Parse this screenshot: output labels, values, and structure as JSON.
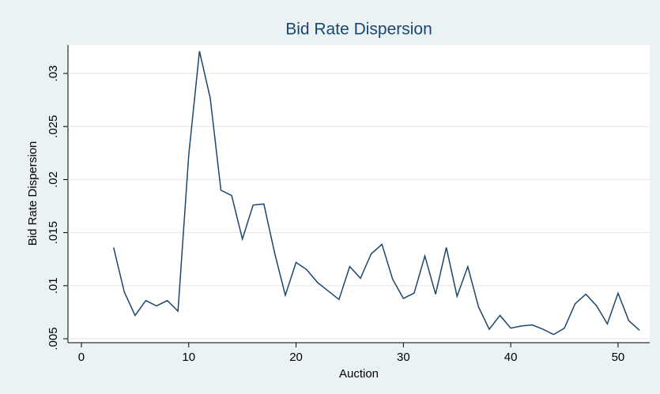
{
  "chart_data": {
    "type": "line",
    "title": "Bid Rate Dispersion",
    "x_label": "Auction",
    "y_label": "Bid Rate Dispersion",
    "x": [
      3,
      4,
      5,
      6,
      7,
      8,
      9,
      10,
      11,
      12,
      13,
      14,
      15,
      16,
      17,
      18,
      19,
      20,
      21,
      22,
      23,
      24,
      25,
      26,
      27,
      28,
      29,
      30,
      31,
      32,
      33,
      34,
      35,
      36,
      37,
      38,
      39,
      40,
      41,
      42,
      43,
      44,
      45,
      46,
      47,
      48,
      49,
      50,
      51,
      52
    ],
    "series": [
      {
        "name": "Bid Rate Dispersion",
        "color": "#1a476f",
        "values": [
          0.0136,
          0.0094,
          0.0072,
          0.0086,
          0.0081,
          0.0086,
          0.0076,
          0.0223,
          0.0321,
          0.0277,
          0.019,
          0.0185,
          0.0144,
          0.0176,
          0.0177,
          0.0131,
          0.0091,
          0.0122,
          0.0115,
          0.0103,
          0.0095,
          0.0087,
          0.0118,
          0.0107,
          0.013,
          0.0139,
          0.0106,
          0.0088,
          0.0093,
          0.0128,
          0.0092,
          0.0136,
          0.009,
          0.0118,
          0.008,
          0.0059,
          0.0072,
          0.006,
          0.0062,
          0.0063,
          0.0059,
          0.0054,
          0.006,
          0.0083,
          0.0092,
          0.0081,
          0.0064,
          0.0093,
          0.0067,
          0.0058
        ]
      }
    ],
    "xlim": [
      -1.25,
      52.95
    ],
    "xticks": [
      0,
      10,
      20,
      30,
      40,
      50
    ],
    "ylim": [
      0.00463,
      0.03268
    ],
    "yticks": [
      {
        "value": 0.005,
        "label": ".005"
      },
      {
        "value": 0.01,
        "label": ".01"
      },
      {
        "value": 0.015,
        "label": ".015"
      },
      {
        "value": 0.02,
        "label": ".02"
      },
      {
        "value": 0.025,
        "label": ".025"
      },
      {
        "value": 0.03,
        "label": ".03"
      }
    ],
    "grid": true
  }
}
